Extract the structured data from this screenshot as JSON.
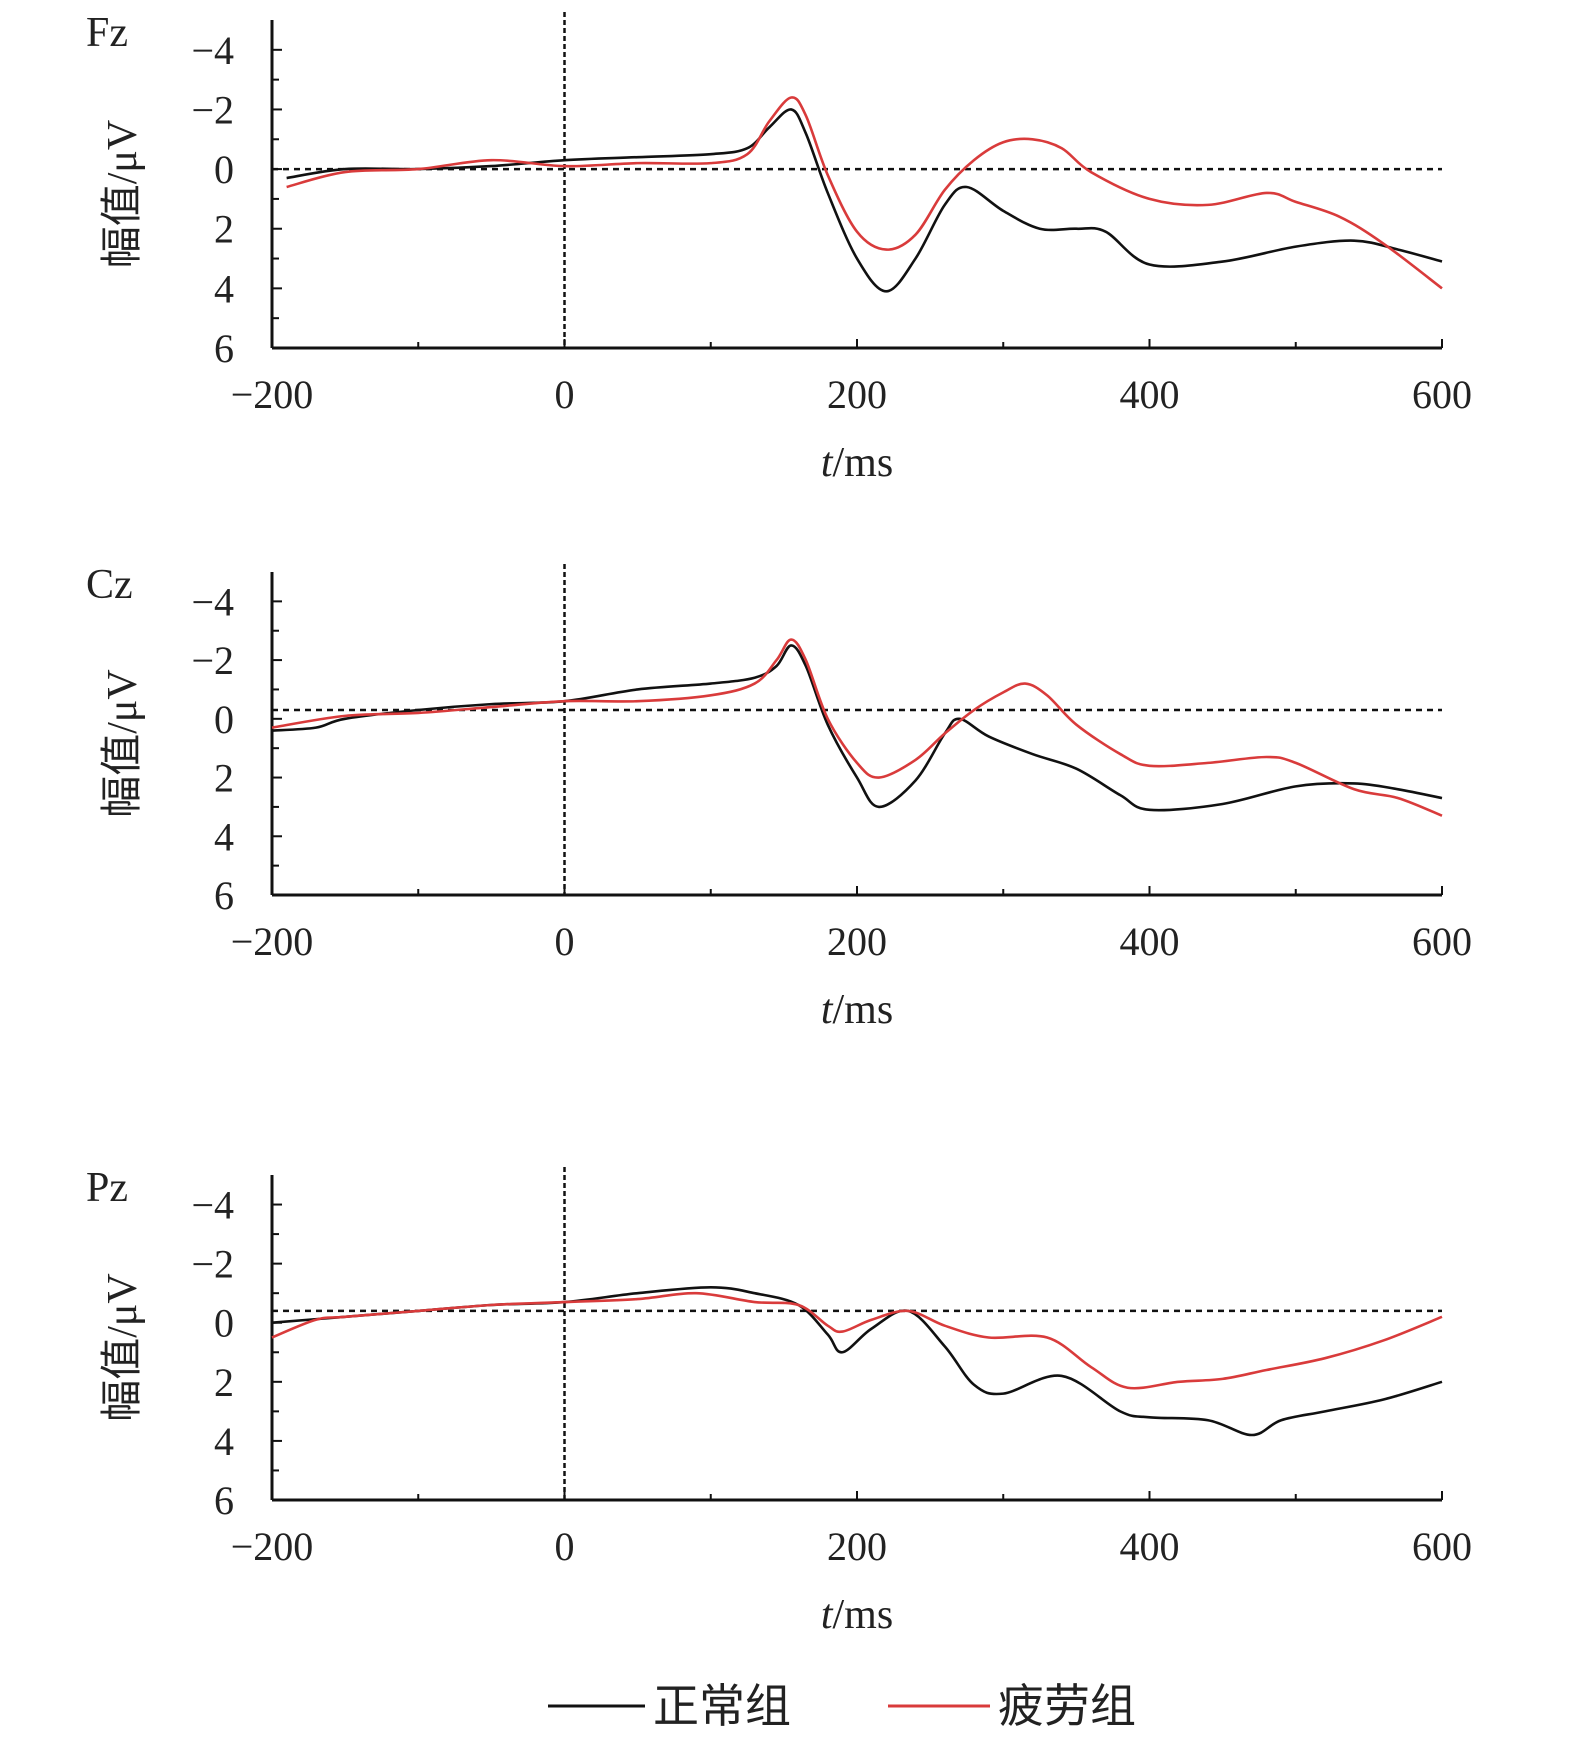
{
  "chart_data": [
    {
      "type": "line",
      "title": "Fz",
      "xlabel": "t/ms",
      "ylabel": "幅值/μV",
      "xlim": [
        -200,
        600
      ],
      "ylim": [
        6,
        -5
      ],
      "y_inverted": true,
      "xticks": [
        -200,
        0,
        200,
        400,
        600
      ],
      "xtick_labels": [
        "−200",
        "0",
        "200",
        "400",
        "600"
      ],
      "yticks": [
        -4,
        -2,
        0,
        2,
        4,
        6
      ],
      "ytick_labels": [
        "−4",
        "−2",
        "0",
        "2",
        "4",
        "6"
      ],
      "zero_line_y": 0,
      "stimulus_line_x": 0,
      "series": [
        {
          "name": "正常组",
          "color": "#111111",
          "x": [
            -190,
            -150,
            -100,
            -50,
            0,
            50,
            100,
            125,
            140,
            155,
            165,
            180,
            200,
            220,
            240,
            260,
            275,
            300,
            325,
            350,
            370,
            400,
            450,
            500,
            540,
            570,
            600
          ],
          "y": [
            0.3,
            0.0,
            0.0,
            -0.1,
            -0.3,
            -0.4,
            -0.5,
            -0.7,
            -1.4,
            -2.0,
            -1.2,
            0.8,
            3.0,
            4.1,
            3.0,
            1.2,
            0.6,
            1.4,
            2.0,
            2.0,
            2.1,
            3.2,
            3.1,
            2.6,
            2.4,
            2.7,
            3.1
          ]
        },
        {
          "name": "疲劳组",
          "color": "#d93b3b",
          "x": [
            -190,
            -150,
            -100,
            -50,
            0,
            50,
            100,
            125,
            140,
            155,
            165,
            180,
            200,
            220,
            240,
            260,
            280,
            300,
            320,
            340,
            360,
            400,
            440,
            480,
            500,
            530,
            560,
            600
          ],
          "y": [
            0.6,
            0.1,
            0.0,
            -0.3,
            -0.1,
            -0.2,
            -0.2,
            -0.5,
            -1.6,
            -2.4,
            -1.8,
            0.2,
            2.1,
            2.7,
            2.2,
            0.7,
            -0.3,
            -0.9,
            -1.0,
            -0.7,
            0.1,
            1.0,
            1.2,
            0.8,
            1.1,
            1.6,
            2.5,
            4.0
          ]
        }
      ]
    },
    {
      "type": "line",
      "title": "Cz",
      "xlabel": "t/ms",
      "ylabel": "幅值/μV",
      "xlim": [
        -200,
        600
      ],
      "ylim": [
        6,
        -5
      ],
      "y_inverted": true,
      "xticks": [
        -200,
        0,
        200,
        400,
        600
      ],
      "xtick_labels": [
        "−200",
        "0",
        "200",
        "400",
        "600"
      ],
      "yticks": [
        -4,
        -2,
        0,
        2,
        4,
        6
      ],
      "ytick_labels": [
        "−4",
        "−2",
        "0",
        "2",
        "4",
        "6"
      ],
      "zero_line_y": -0.3,
      "stimulus_line_x": 0,
      "series": [
        {
          "name": "正常组",
          "color": "#111111",
          "x": [
            -200,
            -170,
            -150,
            -100,
            -50,
            0,
            50,
            100,
            130,
            145,
            155,
            165,
            180,
            200,
            215,
            240,
            260,
            270,
            290,
            320,
            350,
            380,
            400,
            450,
            500,
            540,
            570,
            600
          ],
          "y": [
            0.4,
            0.3,
            0.0,
            -0.3,
            -0.5,
            -0.6,
            -1.0,
            -1.2,
            -1.4,
            -1.8,
            -2.5,
            -1.8,
            0.2,
            2.0,
            3.0,
            2.1,
            0.5,
            0.0,
            0.6,
            1.2,
            1.7,
            2.6,
            3.1,
            2.9,
            2.3,
            2.2,
            2.4,
            2.7
          ]
        },
        {
          "name": "疲劳组",
          "color": "#d93b3b",
          "x": [
            -200,
            -150,
            -100,
            -50,
            0,
            50,
            100,
            130,
            145,
            155,
            165,
            180,
            200,
            215,
            240,
            260,
            280,
            300,
            315,
            330,
            350,
            380,
            400,
            440,
            480,
            500,
            540,
            570,
            600
          ],
          "y": [
            0.3,
            -0.1,
            -0.2,
            -0.4,
            -0.6,
            -0.6,
            -0.8,
            -1.2,
            -2.0,
            -2.7,
            -2.0,
            0.0,
            1.5,
            2.0,
            1.4,
            0.5,
            -0.3,
            -0.9,
            -1.2,
            -0.8,
            0.2,
            1.2,
            1.6,
            1.5,
            1.3,
            1.5,
            2.4,
            2.7,
            3.3
          ]
        }
      ]
    },
    {
      "type": "line",
      "title": "Pz",
      "xlabel": "t/ms",
      "ylabel": "幅值/μV",
      "xlim": [
        -200,
        600
      ],
      "ylim": [
        6,
        -5
      ],
      "y_inverted": true,
      "xticks": [
        -200,
        0,
        200,
        400,
        600
      ],
      "xtick_labels": [
        "−200",
        "0",
        "200",
        "400",
        "600"
      ],
      "yticks": [
        -4,
        -2,
        0,
        2,
        4,
        6
      ],
      "ytick_labels": [
        "−4",
        "−2",
        "0",
        "2",
        "4",
        "6"
      ],
      "zero_line_y": -0.4,
      "stimulus_line_x": 0,
      "series": [
        {
          "name": "正常组",
          "color": "#111111",
          "x": [
            -200,
            -150,
            -100,
            -50,
            0,
            50,
            100,
            130,
            160,
            180,
            190,
            210,
            235,
            260,
            280,
            300,
            340,
            380,
            400,
            440,
            470,
            490,
            520,
            560,
            600
          ],
          "y": [
            0.0,
            -0.2,
            -0.4,
            -0.6,
            -0.7,
            -1.0,
            -1.2,
            -1.0,
            -0.6,
            0.4,
            1.0,
            0.2,
            -0.4,
            0.8,
            2.1,
            2.4,
            1.8,
            3.0,
            3.2,
            3.3,
            3.8,
            3.3,
            3.0,
            2.6,
            2.0
          ]
        },
        {
          "name": "疲劳组",
          "color": "#d93b3b",
          "x": [
            -200,
            -170,
            -150,
            -100,
            -50,
            0,
            50,
            90,
            130,
            160,
            180,
            190,
            210,
            235,
            260,
            290,
            330,
            360,
            385,
            420,
            450,
            480,
            520,
            560,
            600
          ],
          "y": [
            0.5,
            -0.1,
            -0.2,
            -0.4,
            -0.6,
            -0.7,
            -0.8,
            -1.0,
            -0.7,
            -0.6,
            0.1,
            0.3,
            -0.1,
            -0.4,
            0.1,
            0.5,
            0.5,
            1.5,
            2.2,
            2.0,
            1.9,
            1.6,
            1.2,
            0.6,
            -0.2
          ]
        }
      ]
    }
  ],
  "legend": {
    "items": [
      {
        "name": "正常组",
        "color": "#111111"
      },
      {
        "name": "疲劳组",
        "color": "#d93b3b"
      }
    ]
  }
}
